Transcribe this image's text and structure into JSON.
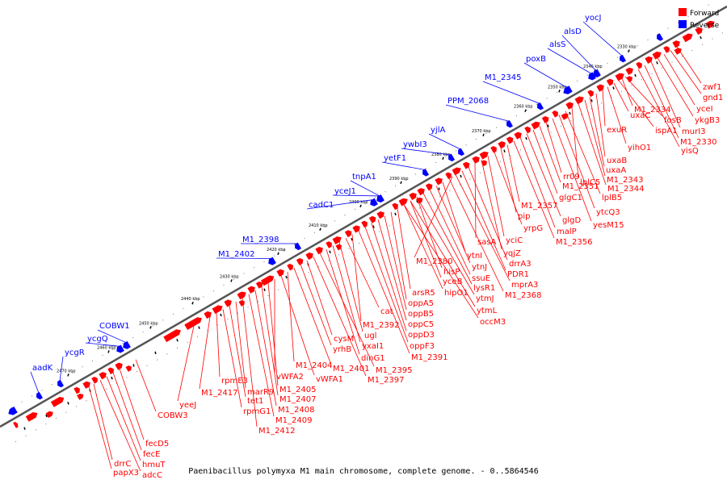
{
  "title": "Paenibacillus polymyxa M1 main chromosome, complete genome. - 0..5864546",
  "legend": [
    {
      "label": "Forward",
      "color": "#ff0000"
    },
    {
      "label": "Reverse",
      "color": "#0000ff"
    }
  ],
  "colors": {
    "forward": "#ff0000",
    "reverse": "#0000ff",
    "axis": "#555555"
  },
  "ticks": [
    "2330 kbp",
    "2340 kbp",
    "2350 kbp",
    "2360 kbp",
    "2370 kbp",
    "2380 kbp",
    "2390 kbp",
    "2400 kbp",
    "2410 kbp",
    "2420 kbp",
    "2430 kbp",
    "2440 kbp",
    "2450 kbp",
    "2460 kbp",
    "2470 kbp"
  ],
  "reverse_genes": [
    "aadK",
    "ycgR",
    "ycgQ",
    "COBW1",
    "M1_2402",
    "M1_2398",
    "cadC1",
    "yceJ1",
    "tnpA1",
    "yetF1",
    "ywbI3",
    "yjlA",
    "PPM_2068",
    "M1_2345",
    "poxB",
    "alsS",
    "alsD",
    "yocJ"
  ],
  "forward_genes": [
    "zwf1",
    "gnd1",
    "yceI",
    "ykgB3",
    "murI3",
    "M1_2330",
    "yisQ",
    "M1_2334",
    "fosB",
    "ispA1",
    "uxaC",
    "yihO1",
    "exuR",
    "uxaB",
    "uxaA",
    "M1_2343",
    "M1_2344",
    "lplC5",
    "lplB5",
    "ytcQ3",
    "yesM15",
    "rr09",
    "M1_2351",
    "glgC1",
    "glgD",
    "malP",
    "M1_2356",
    "M1_2357",
    "pip",
    "yrpG",
    "yciC",
    "yqjZ",
    "sasA",
    "drrA3",
    "PDR1",
    "mprA3",
    "M1_2368",
    "ytnI",
    "ytnJ",
    "ssuE",
    "lysR1",
    "ytmJ",
    "ytmL",
    "occM3",
    "M1_2380",
    "hisP",
    "yceB",
    "hipO1",
    "arsR5",
    "oppA5",
    "oppB5",
    "oppC5",
    "oppD3",
    "oppF3",
    "M1_2391",
    "M1_2392",
    "cat",
    "ugl",
    "yxaI1",
    "dinG1",
    "M1_2395",
    "M1_2397",
    "cysM",
    "yrhB",
    "M1_2401",
    "M1_2404",
    "vWFA1",
    "vWFA2",
    "M1_2405",
    "M1_2407",
    "M1_2408",
    "M1_2409",
    "M1_2412",
    "marR9",
    "tet1",
    "rpmG1",
    "rpmE3",
    "M1_2417",
    "yeeJ",
    "COBW3",
    "fecD5",
    "fecE",
    "hmuT",
    "adcC",
    "drrC",
    "papX3"
  ]
}
